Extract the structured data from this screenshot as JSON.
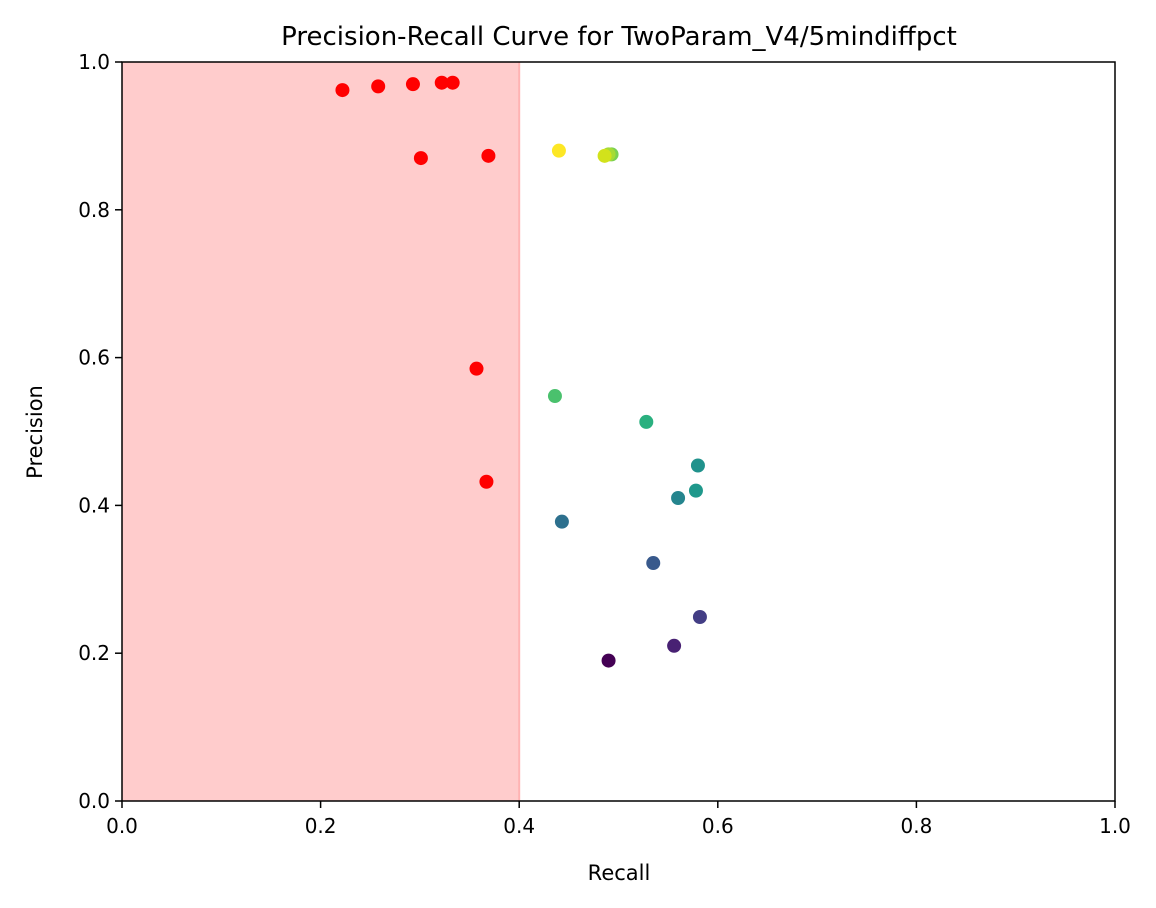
{
  "chart_data": {
    "type": "scatter",
    "title": "Precision-Recall Curve for TwoParam_V4/5mindiffpct",
    "xlabel": "Recall",
    "ylabel": "Precision",
    "xlim": [
      0.0,
      1.0
    ],
    "ylim": [
      0.0,
      1.0
    ],
    "grid": false,
    "x_ticks": [
      "0.0",
      "0.2",
      "0.4",
      "0.6",
      "0.8",
      "1.0"
    ],
    "y_ticks": [
      "0.0",
      "0.2",
      "0.4",
      "0.6",
      "0.8",
      "1.0"
    ],
    "shaded_region": {
      "x_range": [
        0.0,
        0.4
      ],
      "color": "#ffcccc"
    },
    "series": [
      {
        "color": "#ff0000",
        "points": [
          {
            "x": 0.222,
            "y": 0.962
          },
          {
            "x": 0.258,
            "y": 0.967
          },
          {
            "x": 0.293,
            "y": 0.97
          },
          {
            "x": 0.322,
            "y": 0.972
          },
          {
            "x": 0.333,
            "y": 0.972
          },
          {
            "x": 0.301,
            "y": 0.87
          },
          {
            "x": 0.369,
            "y": 0.873
          },
          {
            "x": 0.357,
            "y": 0.585
          },
          {
            "x": 0.367,
            "y": 0.432
          }
        ]
      },
      {
        "colormap": "viridis",
        "points": [
          {
            "x": 0.49,
            "y": 0.19,
            "color": "#440154"
          },
          {
            "x": 0.556,
            "y": 0.21,
            "color": "#482173"
          },
          {
            "x": 0.582,
            "y": 0.249,
            "color": "#433e85"
          },
          {
            "x": 0.535,
            "y": 0.322,
            "color": "#38598c"
          },
          {
            "x": 0.443,
            "y": 0.378,
            "color": "#2d708e"
          },
          {
            "x": 0.56,
            "y": 0.41,
            "color": "#25858e"
          },
          {
            "x": 0.578,
            "y": 0.42,
            "color": "#1f988b"
          },
          {
            "x": 0.58,
            "y": 0.454,
            "color": "#20928c"
          },
          {
            "x": 0.528,
            "y": 0.513,
            "color": "#2ab07f"
          },
          {
            "x": 0.436,
            "y": 0.548,
            "color": "#4ac16d"
          },
          {
            "x": 0.493,
            "y": 0.875,
            "color": "#7ad151"
          },
          {
            "x": 0.49,
            "y": 0.875,
            "color": "#a5db36"
          },
          {
            "x": 0.486,
            "y": 0.873,
            "color": "#d2e21b"
          },
          {
            "x": 0.44,
            "y": 0.88,
            "color": "#fde725"
          }
        ]
      }
    ]
  }
}
